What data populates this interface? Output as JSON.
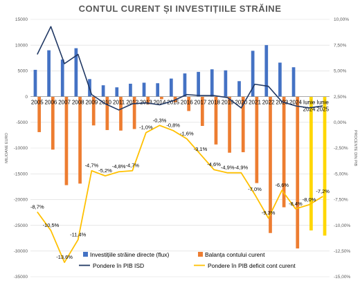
{
  "chart_data": {
    "type": "bar",
    "title": "CONTUL CURENT ȘI INVESTIȚIILE STRĂINE",
    "ylabel": "MILIOANE EURO",
    "y2label": "PROCENTE DIN PIB",
    "ylim": [
      -35000,
      15000
    ],
    "y_ticks": [
      "15000",
      "10000",
      "5000",
      "0",
      "-5000",
      "-10000",
      "-15000",
      "-20000",
      "-25000",
      "-30000",
      "-35000"
    ],
    "y2lim": [
      -15,
      10
    ],
    "y2_ticks": [
      "10,00%",
      "7,50%",
      "5,00%",
      "2,50%",
      "0,00%",
      "-2,50%",
      "-5,00%",
      "-7,50%",
      "-10,00%",
      "-12,50%",
      "-15,00%"
    ],
    "categories": [
      "2005",
      "2006",
      "2007",
      "2008",
      "2009",
      "2010",
      "2011",
      "2012",
      "2013",
      "2014",
      "2015",
      "2016",
      "2017",
      "2018",
      "2019",
      "2020",
      "2021",
      "2022",
      "2023",
      "2024",
      "Iunie 2024",
      "Iunie 2025"
    ],
    "category_labels": [
      [
        "2005"
      ],
      [
        "2006"
      ],
      [
        "2007"
      ],
      [
        "2008"
      ],
      [
        "2009"
      ],
      [
        "2010"
      ],
      [
        "2011"
      ],
      [
        "2012"
      ],
      [
        "2013"
      ],
      [
        "2014"
      ],
      [
        "2015"
      ],
      [
        "2016"
      ],
      [
        "2017"
      ],
      [
        "2018"
      ],
      [
        "2019"
      ],
      [
        "2020"
      ],
      [
        "2021"
      ],
      [
        "2022"
      ],
      [
        "2023"
      ],
      [
        "2024"
      ],
      [
        "Iunie",
        "2024"
      ],
      [
        "Iunie",
        "2025"
      ]
    ],
    "series": [
      {
        "name": "Investițiile străine directe (flux)",
        "kind": "bar",
        "axis": "left",
        "color": "#4472C4",
        "values": [
          5200,
          9000,
          7200,
          9400,
          3400,
          2200,
          1800,
          2500,
          2700,
          2600,
          3500,
          4500,
          4800,
          5300,
          5100,
          3000,
          8900,
          10000,
          6600,
          5700,
          null,
          null
        ]
      },
      {
        "name": "Balanța contului curent",
        "kind": "bar",
        "axis": "left",
        "color": "#ED7D31",
        "values": [
          -6900,
          -10300,
          -17200,
          -16900,
          -5600,
          -6500,
          -6600,
          -6300,
          -1500,
          -500,
          -1100,
          -2800,
          -5700,
          -9300,
          -10900,
          -10800,
          -16800,
          -26500,
          -21500,
          -29500,
          -26000,
          -27000
        ],
        "highlight_last": 2,
        "highlight_color": "#FFD700"
      },
      {
        "name": "Pondere în PIB ISD",
        "kind": "line",
        "axis": "right",
        "color": "#203864",
        "values": [
          6.6,
          9.3,
          5.7,
          6.6,
          2.7,
          1.8,
          1.2,
          1.8,
          1.9,
          1.7,
          2.1,
          2.7,
          2.6,
          2.6,
          2.4,
          1.4,
          3.7,
          3.5,
          2.0,
          1.6,
          1.4,
          1.6
        ]
      },
      {
        "name": "Pondere în PIB deficit cont curent",
        "kind": "line",
        "axis": "right",
        "color": "#FFC000",
        "values": [
          -8.7,
          -10.5,
          -13.6,
          -11.4,
          -4.7,
          -5.2,
          -4.8,
          -4.7,
          -1.0,
          -0.3,
          -0.8,
          -1.6,
          -3.1,
          -4.6,
          -4.9,
          -4.9,
          -7.0,
          -9.3,
          -6.6,
          -8.4,
          -8.0,
          -7.2
        ],
        "labels": [
          "-8,7%",
          "-10,5%",
          "-13,6%",
          "-11,4%",
          "-4,7%",
          "-5,2%",
          "-4,8%",
          "-4,7%",
          "-1,0%",
          "-0,3%",
          "-0,8%",
          "-1,6%",
          "-3,1%",
          "-4,6%",
          "-4,9%",
          "-4,9%",
          "-7,0%",
          "-9,3%",
          "-6,6%",
          "-8,4%",
          "-8,0%",
          "-7,2%"
        ]
      }
    ],
    "legend": {
      "position": "bottom",
      "items": [
        {
          "label": "Investițiile străine directe (flux)",
          "marker": "bar",
          "color": "#4472C4"
        },
        {
          "label": "Balanța contului curent",
          "marker": "bar",
          "color": "#ED7D31"
        },
        {
          "label": "Pondere în PIB ISD",
          "marker": "line",
          "color": "#203864"
        },
        {
          "label": "Pondere în PIB deficit cont curent",
          "marker": "line",
          "color": "#FFC000"
        }
      ]
    },
    "grid": "horizontal"
  }
}
